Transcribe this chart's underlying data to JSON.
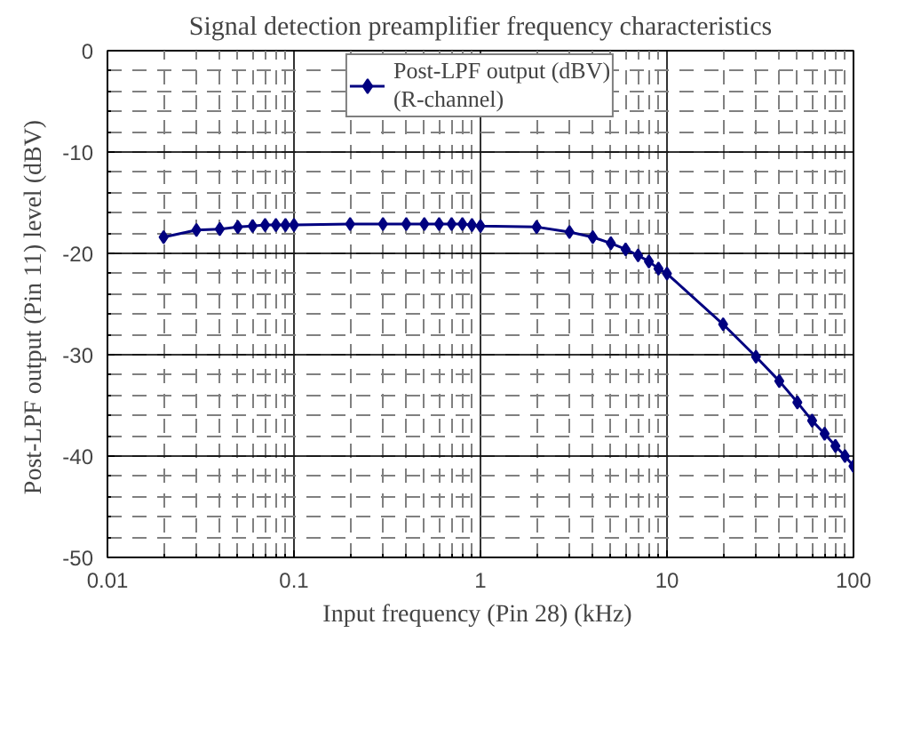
{
  "chart_data": {
    "type": "line",
    "title": "Signal detection preamplifier frequency characteristics",
    "xlabel": "Input frequency (Pin 28)  (kHz)",
    "ylabel": "Post-LPF output (Pin 11) level  (dBV)",
    "log": "x",
    "xlim": [
      0.01,
      100
    ],
    "xticks": [
      0.01,
      0.1,
      1,
      10,
      100
    ],
    "ylim": [
      -50,
      0
    ],
    "yticks": [
      -50,
      -40,
      -30,
      -20,
      -10,
      0
    ],
    "grid": true,
    "legend": "top",
    "marker": "diamond",
    "line_style": "solid",
    "x": [
      0.02,
      0.03,
      0.04,
      0.05,
      0.06,
      0.07,
      0.08,
      0.09,
      0.1,
      0.2,
      0.3,
      0.4,
      0.5,
      0.6,
      0.7,
      0.8,
      0.9,
      1,
      2,
      3,
      4,
      5,
      6,
      7,
      8,
      9,
      10,
      20,
      30,
      40,
      50,
      60,
      70,
      80,
      90,
      100
    ],
    "series": [
      {
        "name": "Post-LPF output (dBV)\n(R-channel)",
        "color": "#000080",
        "values": [
          -18.4,
          -17.7,
          -17.6,
          -17.4,
          -17.3,
          -17.2,
          -17.2,
          -17.2,
          -17.2,
          -17.1,
          -17.1,
          -17.1,
          -17.1,
          -17.1,
          -17.1,
          -17.1,
          -17.2,
          -17.3,
          -17.4,
          -17.9,
          -18.4,
          -19.0,
          -19.6,
          -20.2,
          -20.8,
          -21.5,
          -22.0,
          -27.0,
          -30.2,
          -32.6,
          -34.7,
          -36.5,
          -37.8,
          -39.0,
          -40.0,
          -41.0
        ]
      }
    ]
  }
}
